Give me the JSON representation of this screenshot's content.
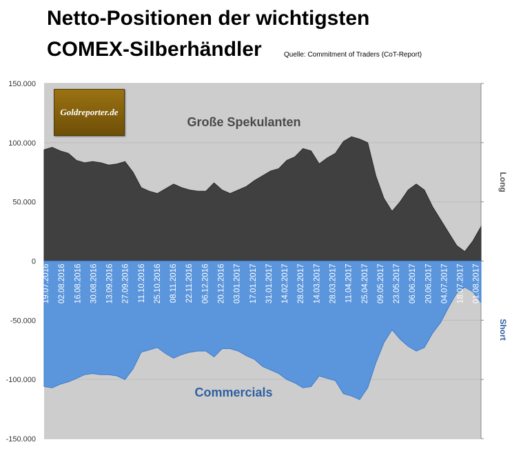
{
  "header": {
    "title_line1": "Netto-Positionen der wichtigsten",
    "title_line2": "COMEX-Silberhändler",
    "source": "Quelle: Commitment of Traders (CoT-Report)"
  },
  "logo": {
    "text": "Goldreporter.de"
  },
  "chart_data": {
    "type": "area",
    "title": "Netto-Positionen der wichtigsten COMEX-Silberhändler",
    "ylim": [
      -150000,
      150000
    ],
    "y_ticks": [
      "150.000",
      "100.000",
      "50.000",
      "0",
      "-50.000",
      "-100.000",
      "-150.000"
    ],
    "y_tick_values": [
      150000,
      100000,
      50000,
      0,
      -50000,
      -100000,
      -150000
    ],
    "right_labels": {
      "upper": "Long",
      "lower": "Short"
    },
    "x_tick_labels": [
      "19.07.2016",
      "02.08.2016",
      "16.08.2016",
      "30.08.2016",
      "13.09.2016",
      "27.09.2016",
      "11.10.2016",
      "25.10.2016",
      "08.11.2016",
      "22.11.2016",
      "06.12.2016",
      "20.12.2016",
      "03.01.2017",
      "17.01.2017",
      "31.01.2017",
      "14.02.2017",
      "28.02.2017",
      "14.03.2017",
      "28.03.2017",
      "11.04.2017",
      "25.04.2017",
      "09.05.2017",
      "23.05.2017",
      "06.06.2017",
      "20.06.2017",
      "04.07.2017",
      "18.07.2017",
      "01.08.2017"
    ],
    "series": [
      {
        "name": "Große Spekulanten",
        "color": "#404040",
        "values": [
          94000,
          96000,
          93000,
          91000,
          85000,
          83000,
          84000,
          83000,
          81000,
          82000,
          84000,
          75000,
          62000,
          59000,
          57000,
          61000,
          65000,
          62000,
          60000,
          59000,
          59000,
          66000,
          60000,
          57000,
          60000,
          63000,
          68000,
          72000,
          76000,
          78000,
          85000,
          88000,
          95000,
          93000,
          82000,
          87000,
          91000,
          101000,
          105000,
          103000,
          100000,
          72000,
          53000,
          42000,
          50000,
          60000,
          65000,
          60000,
          46000,
          35000,
          24000,
          13000,
          8000,
          17000,
          29000
        ]
      },
      {
        "name": "Commercials",
        "color": "#5b96dd",
        "values": [
          -106000,
          -107000,
          -104000,
          -102000,
          -99000,
          -96000,
          -95000,
          -96000,
          -96000,
          -97000,
          -100000,
          -91000,
          -77000,
          -75000,
          -73000,
          -78000,
          -82000,
          -79000,
          -77000,
          -76000,
          -76000,
          -81000,
          -74000,
          -74000,
          -76000,
          -80000,
          -83000,
          -89000,
          -92000,
          -95000,
          -100000,
          -103000,
          -107000,
          -106000,
          -97000,
          -99000,
          -101000,
          -112000,
          -114000,
          -117000,
          -107000,
          -86000,
          -69000,
          -58000,
          -66000,
          -72000,
          -76000,
          -73000,
          -61000,
          -52000,
          -39000,
          -27000,
          -22000,
          -26000,
          -35000
        ]
      }
    ]
  }
}
